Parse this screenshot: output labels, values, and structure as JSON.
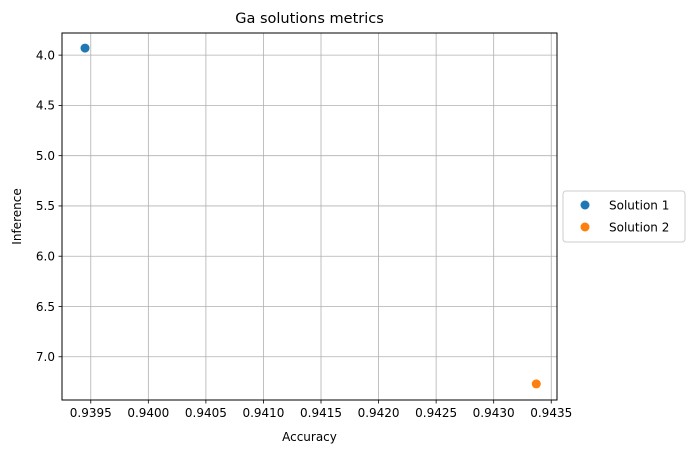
{
  "chart_data": {
    "type": "scatter",
    "title": "Ga solutions metrics",
    "xlabel": "Accuracy",
    "ylabel": "Inference",
    "xlim": [
      0.93925,
      0.94355
    ],
    "ylim": [
      3.78,
      7.43
    ],
    "y_inverted": true,
    "grid": true,
    "legend": "center-right-outside",
    "x_ticks": [
      {
        "value": 0.9395,
        "label": "0.9395"
      },
      {
        "value": 0.94,
        "label": "0.9400"
      },
      {
        "value": 0.9405,
        "label": "0.9405"
      },
      {
        "value": 0.941,
        "label": "0.9410"
      },
      {
        "value": 0.9415,
        "label": "0.9415"
      },
      {
        "value": 0.942,
        "label": "0.9420"
      },
      {
        "value": 0.9425,
        "label": "0.9425"
      },
      {
        "value": 0.943,
        "label": "0.9430"
      },
      {
        "value": 0.9435,
        "label": "0.9435"
      }
    ],
    "y_ticks": [
      {
        "value": 4.0,
        "label": "4.0"
      },
      {
        "value": 4.5,
        "label": "4.5"
      },
      {
        "value": 5.0,
        "label": "5.0"
      },
      {
        "value": 5.5,
        "label": "5.5"
      },
      {
        "value": 6.0,
        "label": "6.0"
      },
      {
        "value": 6.5,
        "label": "6.5"
      },
      {
        "value": 7.0,
        "label": "7.0"
      }
    ],
    "series": [
      {
        "name": "Solution 1",
        "color": "#1f77b4",
        "points": [
          {
            "x": 0.93945,
            "y": 3.93
          }
        ]
      },
      {
        "name": "Solution 2",
        "color": "#ff7f0e",
        "points": [
          {
            "x": 0.94337,
            "y": 7.27
          }
        ]
      }
    ]
  }
}
